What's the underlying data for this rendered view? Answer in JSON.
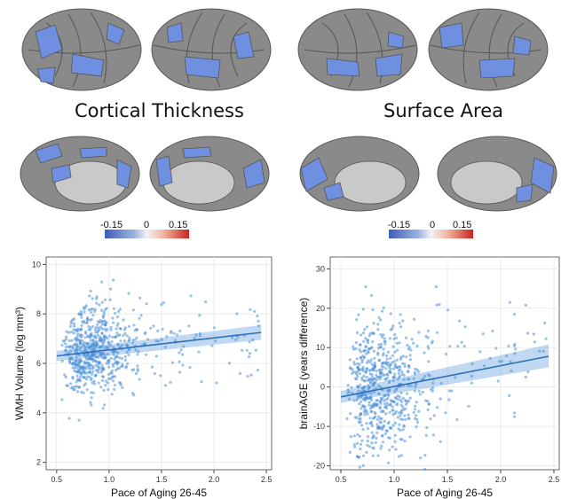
{
  "panels": {
    "thickness": {
      "title": "Cortical Thickness"
    },
    "area": {
      "title": "Surface Area"
    }
  },
  "colorbar": {
    "min_label": "-0.15",
    "mid_label": "0",
    "max_label": "0.15",
    "colors": {
      "negative": "#3b5fb8",
      "neutral": "#f2f2f2",
      "positive": "#c8241c"
    }
  },
  "brain_colors": {
    "cortex": "#8a8a8a",
    "highlight": "#6f8fe0",
    "medial_wall": "#c9c9c9"
  },
  "chart_data": [
    {
      "type": "scatter",
      "title": "",
      "xlabel": "Pace of Aging 26-45",
      "ylabel": "WMH Volume (log mm³)",
      "xlim": [
        0.4,
        2.55
      ],
      "ylim": [
        1.7,
        10.3
      ],
      "xticks": [
        "0.5",
        "1.0",
        "1.5",
        "2.0",
        "2.5"
      ],
      "yticks": [
        "2",
        "4",
        "6",
        "8",
        "10"
      ],
      "point_color": "#4a8fd8",
      "fit_line": {
        "x": [
          0.5,
          2.45
        ],
        "y": [
          6.3,
          7.25
        ]
      },
      "ci_band": {
        "lower_start": 6.1,
        "upper_start": 6.5,
        "lower_end": 6.95,
        "upper_end": 7.55
      },
      "grid": true
    },
    {
      "type": "scatter",
      "title": "",
      "xlabel": "Pace of Aging 26-45",
      "ylabel": "brainAGE (years difference)",
      "xlim": [
        0.4,
        2.55
      ],
      "ylim": [
        -21,
        33
      ],
      "xticks": [
        "0.5",
        "1.0",
        "1.5",
        "2.0",
        "2.5"
      ],
      "yticks": [
        "-20",
        "-10",
        "0",
        "10",
        "20",
        "30"
      ],
      "point_color": "#4a8fd8",
      "fit_line": {
        "x": [
          0.5,
          2.45
        ],
        "y": [
          -2.5,
          7.8
        ]
      },
      "ci_band": {
        "lower_start": -4.0,
        "upper_start": -1.0,
        "lower_end": 5.0,
        "upper_end": 10.8
      },
      "grid": true
    }
  ]
}
